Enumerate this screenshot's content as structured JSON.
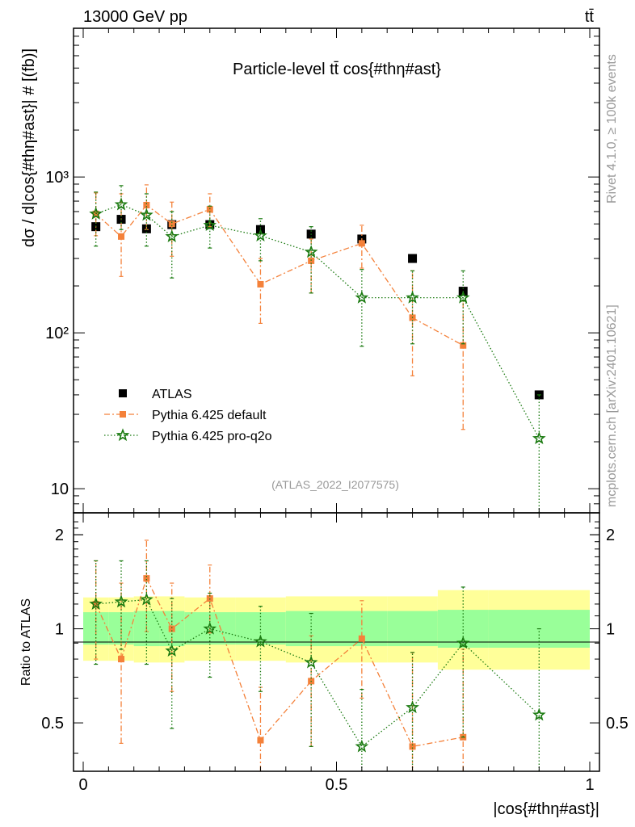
{
  "header": {
    "energy_label": "13000 GeV pp",
    "process_label": "tt̄"
  },
  "side_text": {
    "rivet": "Rivet 4.1.0, ≥ 100k events",
    "mcplots": "mcplots.cern.ch [arXiv:2401.10621]"
  },
  "chart_data": {
    "type": "scatter",
    "title": "Particle-level tt̄ cos{#thη#ast}",
    "watermark": "(ATLAS_2022_I2077575)",
    "xlabel": "|cos{#thη#ast}|",
    "ylabel": "dσ / d|cos{#thη#ast}| # [(fb)]",
    "ratio_ylabel": "Ratio to ATLAS",
    "xlim": [
      0,
      1
    ],
    "ylim": [
      7,
      9000
    ],
    "ratio_ylim": [
      0.35,
      2.35
    ],
    "x_ticks": [
      {
        "v": 0,
        "label": "0"
      },
      {
        "v": 0.5,
        "label": "0.5"
      },
      {
        "v": 1,
        "label": "1"
      }
    ],
    "y_ticks": [
      {
        "v": 10,
        "label": "10"
      },
      {
        "v": 100,
        "label": "10²"
      },
      {
        "v": 1000,
        "label": "10³"
      }
    ],
    "ratio_ticks": [
      {
        "v": 0.5,
        "label": "0.5"
      },
      {
        "v": 1,
        "label": "1"
      },
      {
        "v": 2,
        "label": "2"
      }
    ],
    "bins": [
      [
        0,
        0.05
      ],
      [
        0.05,
        0.1
      ],
      [
        0.1,
        0.15
      ],
      [
        0.15,
        0.2
      ],
      [
        0.2,
        0.3
      ],
      [
        0.3,
        0.4
      ],
      [
        0.4,
        0.5
      ],
      [
        0.5,
        0.6
      ],
      [
        0.6,
        0.7
      ],
      [
        0.7,
        0.8
      ],
      [
        0.8,
        1.0
      ]
    ],
    "band_inner": [
      [
        0.89,
        1.13
      ],
      [
        0.89,
        1.13
      ],
      [
        0.88,
        1.14
      ],
      [
        0.88,
        1.14
      ],
      [
        0.89,
        1.13
      ],
      [
        0.89,
        1.13
      ],
      [
        0.88,
        1.14
      ],
      [
        0.88,
        1.14
      ],
      [
        0.88,
        1.14
      ],
      [
        0.87,
        1.15
      ],
      [
        0.87,
        1.15
      ]
    ],
    "band_outer": [
      [
        0.79,
        1.26
      ],
      [
        0.79,
        1.26
      ],
      [
        0.78,
        1.27
      ],
      [
        0.78,
        1.27
      ],
      [
        0.79,
        1.26
      ],
      [
        0.79,
        1.26
      ],
      [
        0.78,
        1.27
      ],
      [
        0.78,
        1.27
      ],
      [
        0.78,
        1.27
      ],
      [
        0.74,
        1.33
      ],
      [
        0.74,
        1.33
      ]
    ],
    "series": [
      {
        "name": "ATLAS",
        "color": "#000000",
        "marker": "square",
        "x": [
          0.025,
          0.075,
          0.125,
          0.175,
          0.25,
          0.35,
          0.45,
          0.55,
          0.65,
          0.75,
          0.9
        ],
        "y": [
          480,
          535,
          465,
          495,
          495,
          460,
          430,
          400,
          300,
          185,
          40
        ]
      },
      {
        "name": "Pythia 6.425 default",
        "color": "#f4813a",
        "marker": "square-small",
        "line": "dashdot",
        "x": [
          0.025,
          0.075,
          0.125,
          0.175,
          0.25,
          0.35,
          0.45,
          0.55,
          0.65,
          0.75
        ],
        "y": [
          580,
          415,
          660,
          500,
          620,
          205,
          290,
          375,
          125,
          83
        ],
        "ylo": [
          420,
          230,
          460,
          310,
          480,
          115,
          180,
          260,
          53,
          24
        ],
        "yhi": [
          790,
          780,
          890,
          690,
          780,
          300,
          400,
          490,
          250,
          160
        ],
        "ratio": [
          1.2,
          0.8,
          1.45,
          1.0,
          1.25,
          0.44,
          0.68,
          0.93,
          0.42,
          0.45
        ],
        "ratio_lo": [
          0.8,
          0.43,
          0.98,
          0.63,
          0.97,
          0.25,
          0.42,
          0.6,
          0.18,
          0.13
        ],
        "ratio_hi": [
          1.65,
          1.4,
          1.92,
          1.4,
          1.6,
          0.65,
          0.95,
          1.23,
          0.84,
          0.86
        ]
      },
      {
        "name": "Pythia 6.425 pro-q2o",
        "color": "#1a7a10",
        "marker": "star",
        "line": "dotted",
        "x": [
          0.025,
          0.075,
          0.125,
          0.175,
          0.25,
          0.35,
          0.45,
          0.55,
          0.65,
          0.75,
          0.9
        ],
        "y": [
          580,
          665,
          570,
          415,
          490,
          420,
          330,
          168,
          168,
          168,
          21
        ],
        "ylo": [
          360,
          460,
          360,
          225,
          350,
          290,
          180,
          82,
          85,
          85,
          7
        ],
        "yhi": [
          800,
          880,
          780,
          600,
          650,
          540,
          480,
          255,
          250,
          250,
          40
        ],
        "ratio": [
          1.2,
          1.22,
          1.24,
          0.85,
          1.0,
          0.91,
          0.78,
          0.42,
          0.56,
          0.9,
          0.53
        ],
        "ratio_lo": [
          0.77,
          0.86,
          0.77,
          0.48,
          0.7,
          0.63,
          0.42,
          0.2,
          0.28,
          0.45,
          0.17
        ],
        "ratio_hi": [
          1.65,
          1.65,
          1.65,
          1.25,
          1.3,
          1.18,
          1.12,
          0.64,
          0.84,
          1.36,
          1.0
        ]
      }
    ]
  }
}
